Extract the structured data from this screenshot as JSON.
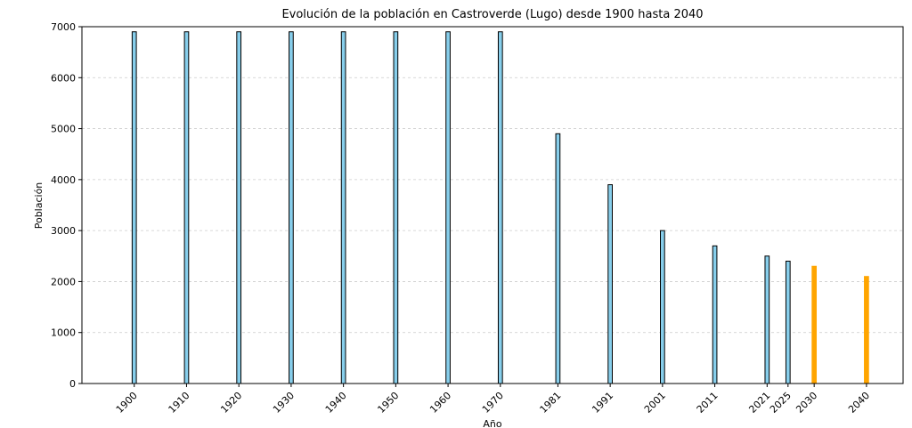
{
  "chart_data": {
    "type": "bar",
    "title": "Evolución de la población en Castroverde (Lugo) desde 1900 hasta 2040",
    "xlabel": "Año",
    "ylabel": "Población",
    "ylim": [
      0,
      7000
    ],
    "xlim": [
      1890,
      2047
    ],
    "yticks": [
      0,
      1000,
      2000,
      3000,
      4000,
      5000,
      6000,
      7000
    ],
    "grid": "y-dashed",
    "bar_width_years": 0.8,
    "series": [
      {
        "name": "",
        "color": "#87ceeb",
        "edge_color": "#000000",
        "x": [
          1900,
          1910,
          1920,
          1930,
          1940,
          1950,
          1960,
          1970,
          1981,
          1991,
          2001,
          2011,
          2021,
          2025
        ],
        "values": [
          6900,
          6900,
          6900,
          6900,
          6900,
          6900,
          6900,
          6900,
          4900,
          3900,
          3000,
          2700,
          2500,
          2400
        ]
      },
      {
        "name": "",
        "color": "#ffa500",
        "edge_color": "#ffa500",
        "x": [
          2030,
          2040
        ],
        "values": [
          2300,
          2100
        ]
      }
    ],
    "xtick_labels": [
      "1900",
      "1910",
      "1920",
      "1930",
      "1940",
      "1950",
      "1960",
      "1970",
      "1981",
      "1991",
      "2001",
      "2011",
      "2021",
      "2025",
      "2030",
      "2040"
    ]
  }
}
